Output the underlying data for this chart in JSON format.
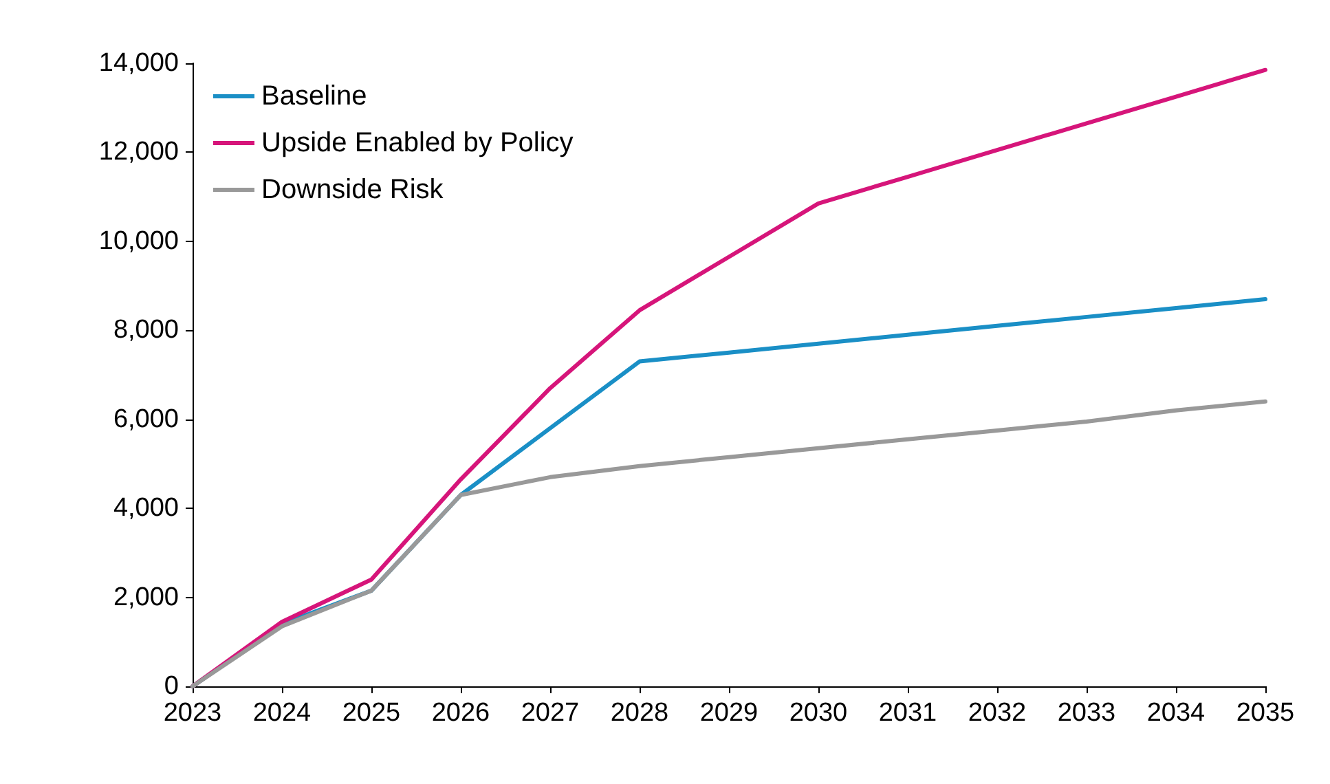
{
  "chart_data": {
    "type": "line",
    "categories": [
      "2023",
      "2024",
      "2025",
      "2026",
      "2027",
      "2028",
      "2029",
      "2030",
      "2031",
      "2032",
      "2033",
      "2034",
      "2035"
    ],
    "series": [
      {
        "name": "Baseline",
        "color": "#1a8fc6",
        "values": [
          0,
          1400,
          2150,
          4300,
          5800,
          7300,
          7500,
          7700,
          7900,
          8100,
          8300,
          8500,
          8700
        ]
      },
      {
        "name": "Upside Enabled by Policy",
        "color": "#d6157a",
        "values": [
          0,
          1450,
          2400,
          4650,
          6700,
          8450,
          9650,
          10850,
          11450,
          12050,
          12650,
          13250,
          13850
        ]
      },
      {
        "name": "Downside Risk",
        "color": "#999999",
        "values": [
          0,
          1350,
          2150,
          4300,
          4700,
          4950,
          5150,
          5350,
          5550,
          5750,
          5950,
          6200,
          6400
        ]
      }
    ],
    "ylim": [
      0,
      14000
    ],
    "yticks": [
      {
        "value": 0,
        "label": "0"
      },
      {
        "value": 2000,
        "label": "2,000"
      },
      {
        "value": 4000,
        "label": "4,000"
      },
      {
        "value": 6000,
        "label": "6,000"
      },
      {
        "value": 8000,
        "label": "8,000"
      },
      {
        "value": 10000,
        "label": "10,000"
      },
      {
        "value": 12000,
        "label": "12,000"
      },
      {
        "value": 14000,
        "label": "14,000"
      }
    ],
    "grid": false,
    "legend": "top left",
    "marker": "none",
    "line_style": "solid"
  }
}
